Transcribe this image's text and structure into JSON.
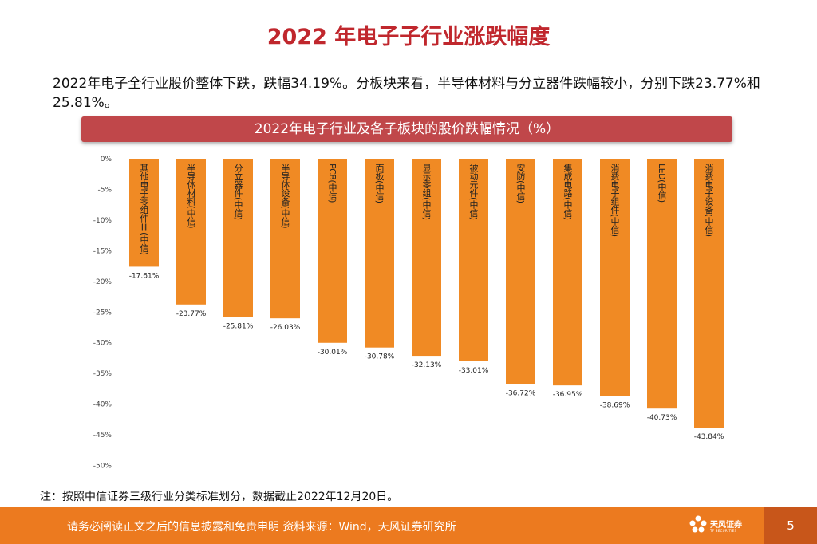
{
  "page": {
    "title": "2022 年电子子行业涨跌幅度",
    "summary": "2022年电子全行业股价整体下跌，跌幅34.19%。分板块来看，半导体材料与分立器件跌幅较小，分别下跌23.77%和25.81%。",
    "note": "注：按照中信证券三级行业分类标准划分，数据截止2022年12月20日。",
    "footer": "请务必阅读正文之后的信息披露和免责申明  资料来源：Wind，天风证券研究所",
    "page_number": "5",
    "logo_name": "天风证券",
    "logo_sub": "TF SECURITIES",
    "logo_icon": "tf-flower-logo-icon"
  },
  "colors": {
    "title": "#c0272d",
    "bar": "#f08a24",
    "banner": "#c0474a",
    "footer": "#ec7a1f"
  },
  "chart_data": {
    "type": "bar",
    "title": "2022年电子行业及各子板块的股价跌幅情况（%）",
    "categories": [
      "其他电子零组件Ⅲ(中信)",
      "半导体材料(中信)",
      "分立器件(中信)",
      "半导体设备(中信)",
      "PCB(中信)",
      "面板(中信)",
      "显示零组(中信)",
      "被动元件(中信)",
      "安防(中信)",
      "集成电路(中信)",
      "消费电子组件(中信)",
      "LED(中信)",
      "消费电子设备(中信)"
    ],
    "values": [
      -17.61,
      -23.77,
      -25.81,
      -26.03,
      -30.01,
      -30.78,
      -32.13,
      -33.01,
      -36.72,
      -36.95,
      -38.69,
      -40.73,
      -43.84
    ],
    "data_labels": [
      "-17.61%",
      "-23.77%",
      "-25.81%",
      "-26.03%",
      "-30.01%",
      "-30.78%",
      "-32.13%",
      "-33.01%",
      "-36.72%",
      "-36.95%",
      "-38.69%",
      "-40.73%",
      "-43.84%"
    ],
    "ylim": [
      -50,
      0
    ],
    "yticks": [
      0,
      -5,
      -10,
      -15,
      -20,
      -25,
      -30,
      -35,
      -40,
      -45,
      -50
    ],
    "ytick_labels": [
      "0%",
      "-5%",
      "-10%",
      "-15%",
      "-20%",
      "-25%",
      "-30%",
      "-35%",
      "-40%",
      "-45%",
      "-50%"
    ],
    "xlabel": "",
    "ylabel": "",
    "grid": false,
    "legend": "none"
  }
}
